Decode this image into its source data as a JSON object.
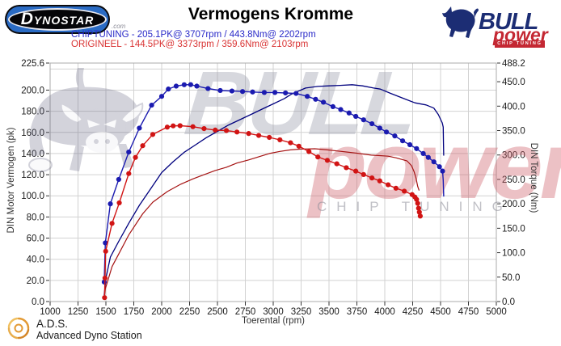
{
  "header": {
    "dynostar_d": "D",
    "dynostar_rest": "YNOSTAR",
    "dynostar_domain": ".com",
    "title": "Vermogens Kromme",
    "legend": [
      {
        "text": "CHIPTUNING  - 205.1PK@ 3707rpm / 443.8Nm@ 2202rpm",
        "color": "#2929c8"
      },
      {
        "text": "ORIGINEEL  - 144.5PK@ 3373rpm / 359.6Nm@ 2103rpm",
        "color": "#d93333"
      }
    ],
    "bull_logo": {
      "word1": "BULL",
      "word2": "power",
      "word3": "CHIP TUNING",
      "navy": "#1c2d74",
      "red": "#c42833"
    }
  },
  "watermark": {
    "word1": "BULL",
    "word2": "power",
    "word3": "CHIP TUNING"
  },
  "footer": {
    "abbr": "A.D.S.",
    "name": "Advanced Dyno Station"
  },
  "chart_data": {
    "type": "line",
    "title": "Vermogens Kromme",
    "xlabel": "Toerental (rpm)",
    "ylabel_left": "DIN Motor Vermogen (pk)",
    "ylabel_right": "DIN Torque (Nm)",
    "x_range": [
      1000,
      5000
    ],
    "y_left_range": [
      0,
      225.6
    ],
    "y_right_range": [
      0,
      488.2
    ],
    "x_ticks": [
      1000,
      1250,
      1500,
      1750,
      2000,
      2250,
      2500,
      2750,
      3000,
      3250,
      3500,
      3750,
      4000,
      4250,
      4500,
      4750,
      5000
    ],
    "y_left_ticks": [
      0,
      20,
      40,
      60,
      80,
      100,
      120,
      140,
      160,
      180,
      200,
      225.6
    ],
    "y_right_ticks": [
      0,
      50,
      100,
      150,
      200,
      250,
      300,
      350,
      400,
      450,
      488.2
    ],
    "x_grid": [
      1250,
      1500,
      1750,
      2000,
      2250,
      2500,
      2750,
      3000,
      3250,
      3500,
      3750,
      4000,
      4250,
      4500,
      4750
    ],
    "y_grid_left_units": [
      20,
      40,
      60,
      80,
      100,
      120,
      140,
      160,
      180,
      200,
      220
    ],
    "grid": true,
    "legend_position": "top-left",
    "peaks": {
      "chiptuning": {
        "power_pk": 205.1,
        "power_rpm": 3707,
        "torque_nm": 443.8,
        "torque_rpm": 2202
      },
      "origineel": {
        "power_pk": 144.5,
        "power_rpm": 3373,
        "torque_nm": 359.6,
        "torque_rpm": 2103
      }
    },
    "series": [
      {
        "name": "CHIPTUNING vermogen (pk)",
        "axis": "left",
        "color": "#00007e",
        "width": 1.3,
        "markers": false,
        "marker_skip_last": 0,
        "points": [
          [
            1485,
            6
          ],
          [
            1500,
            22
          ],
          [
            1540,
            42
          ],
          [
            1615,
            57
          ],
          [
            1705,
            74
          ],
          [
            1800,
            91
          ],
          [
            1910,
            108
          ],
          [
            2000,
            122
          ],
          [
            2100,
            132
          ],
          [
            2200,
            141
          ],
          [
            2300,
            148
          ],
          [
            2400,
            155
          ],
          [
            2500,
            161
          ],
          [
            2600,
            167
          ],
          [
            2700,
            172
          ],
          [
            2800,
            177
          ],
          [
            2900,
            182
          ],
          [
            3000,
            187
          ],
          [
            3100,
            192
          ],
          [
            3160,
            196
          ],
          [
            3290,
            202
          ],
          [
            3400,
            203.5
          ],
          [
            3500,
            204
          ],
          [
            3600,
            204.5
          ],
          [
            3707,
            205.1
          ],
          [
            3800,
            204
          ],
          [
            3900,
            202
          ],
          [
            3960,
            201
          ],
          [
            4050,
            197
          ],
          [
            4170,
            192
          ],
          [
            4270,
            188
          ],
          [
            4370,
            186
          ],
          [
            4440,
            183
          ],
          [
            4480,
            177
          ],
          [
            4515,
            169
          ],
          [
            4524,
            165
          ],
          [
            4526,
            150
          ],
          [
            4528,
            138
          ]
        ]
      },
      {
        "name": "CHIPTUNING koppel (Nm)",
        "axis": "right",
        "color": "#1b1bb0",
        "width": 1.4,
        "markers": true,
        "marker_skip_last": 2,
        "points": [
          [
            1485,
            40
          ],
          [
            1495,
            120
          ],
          [
            1540,
            200
          ],
          [
            1615,
            250
          ],
          [
            1705,
            306
          ],
          [
            1800,
            355
          ],
          [
            1910,
            402
          ],
          [
            2000,
            420
          ],
          [
            2060,
            435
          ],
          [
            2130,
            441
          ],
          [
            2202,
            443.8
          ],
          [
            2260,
            444
          ],
          [
            2315,
            441
          ],
          [
            2415,
            436
          ],
          [
            2525,
            432
          ],
          [
            2630,
            431
          ],
          [
            2725,
            430
          ],
          [
            2815,
            429
          ],
          [
            2920,
            428
          ],
          [
            3015,
            428
          ],
          [
            3110,
            427
          ],
          [
            3205,
            426
          ],
          [
            3305,
            420
          ],
          [
            3380,
            414
          ],
          [
            3450,
            408
          ],
          [
            3535,
            399
          ],
          [
            3605,
            393
          ],
          [
            3680,
            386
          ],
          [
            3740,
            379
          ],
          [
            3810,
            372
          ],
          [
            3885,
            364
          ],
          [
            3955,
            355
          ],
          [
            4015,
            347
          ],
          [
            4090,
            339
          ],
          [
            4160,
            329
          ],
          [
            4225,
            321
          ],
          [
            4285,
            313
          ],
          [
            4345,
            303
          ],
          [
            4390,
            295
          ],
          [
            4440,
            286
          ],
          [
            4490,
            276
          ],
          [
            4518,
            267
          ],
          [
            4524,
            248
          ],
          [
            4528,
            215
          ]
        ]
      },
      {
        "name": "ORIGINEEL vermogen (pk)",
        "axis": "left",
        "color": "#a51212",
        "width": 1.2,
        "markers": false,
        "marker_skip_last": 0,
        "points": [
          [
            1488,
            5
          ],
          [
            1495,
            12
          ],
          [
            1555,
            33
          ],
          [
            1620,
            46
          ],
          [
            1705,
            63
          ],
          [
            1830,
            83
          ],
          [
            1920,
            94
          ],
          [
            2050,
            104
          ],
          [
            2170,
            111
          ],
          [
            2280,
            116
          ],
          [
            2380,
            120
          ],
          [
            2480,
            124
          ],
          [
            2580,
            127
          ],
          [
            2675,
            131
          ],
          [
            2780,
            134
          ],
          [
            2870,
            137
          ],
          [
            2965,
            140
          ],
          [
            3060,
            142
          ],
          [
            3155,
            143.5
          ],
          [
            3250,
            144.2
          ],
          [
            3373,
            144.5
          ],
          [
            3485,
            143.5
          ],
          [
            3570,
            142.5
          ],
          [
            3655,
            141.5
          ],
          [
            3740,
            140.5
          ],
          [
            3810,
            139.5
          ],
          [
            3880,
            138.5
          ],
          [
            3955,
            138
          ],
          [
            4030,
            137.5
          ],
          [
            4100,
            136
          ],
          [
            4200,
            133
          ],
          [
            4240,
            128.5
          ],
          [
            4262,
            123
          ],
          [
            4280,
            117
          ],
          [
            4295,
            109
          ],
          [
            4308,
            105
          ]
        ]
      },
      {
        "name": "ORIGINEEL koppel (Nm)",
        "axis": "right",
        "color": "#d11414",
        "width": 1.4,
        "markers": true,
        "marker_skip_last": 0,
        "points": [
          [
            1488,
            8
          ],
          [
            1492,
            48
          ],
          [
            1498,
            103
          ],
          [
            1555,
            160
          ],
          [
            1620,
            202
          ],
          [
            1705,
            262
          ],
          [
            1765,
            295
          ],
          [
            1830,
            319
          ],
          [
            1920,
            342
          ],
          [
            2050,
            357
          ],
          [
            2103,
            359.6
          ],
          [
            2165,
            360
          ],
          [
            2280,
            358
          ],
          [
            2380,
            354
          ],
          [
            2480,
            351
          ],
          [
            2580,
            350
          ],
          [
            2675,
            347
          ],
          [
            2780,
            344
          ],
          [
            2870,
            340
          ],
          [
            2965,
            336
          ],
          [
            3060,
            331
          ],
          [
            3155,
            325
          ],
          [
            3230,
            318
          ],
          [
            3320,
            307
          ],
          [
            3400,
            296
          ],
          [
            3485,
            289
          ],
          [
            3570,
            282
          ],
          [
            3655,
            274
          ],
          [
            3740,
            267
          ],
          [
            3810,
            260
          ],
          [
            3885,
            253
          ],
          [
            3955,
            247
          ],
          [
            4030,
            239
          ],
          [
            4100,
            232
          ],
          [
            4175,
            226
          ],
          [
            4245,
            219
          ],
          [
            4270,
            214
          ],
          [
            4285,
            209
          ],
          [
            4295,
            201
          ],
          [
            4303,
            191
          ],
          [
            4310,
            183
          ],
          [
            4318,
            175
          ]
        ]
      }
    ]
  }
}
